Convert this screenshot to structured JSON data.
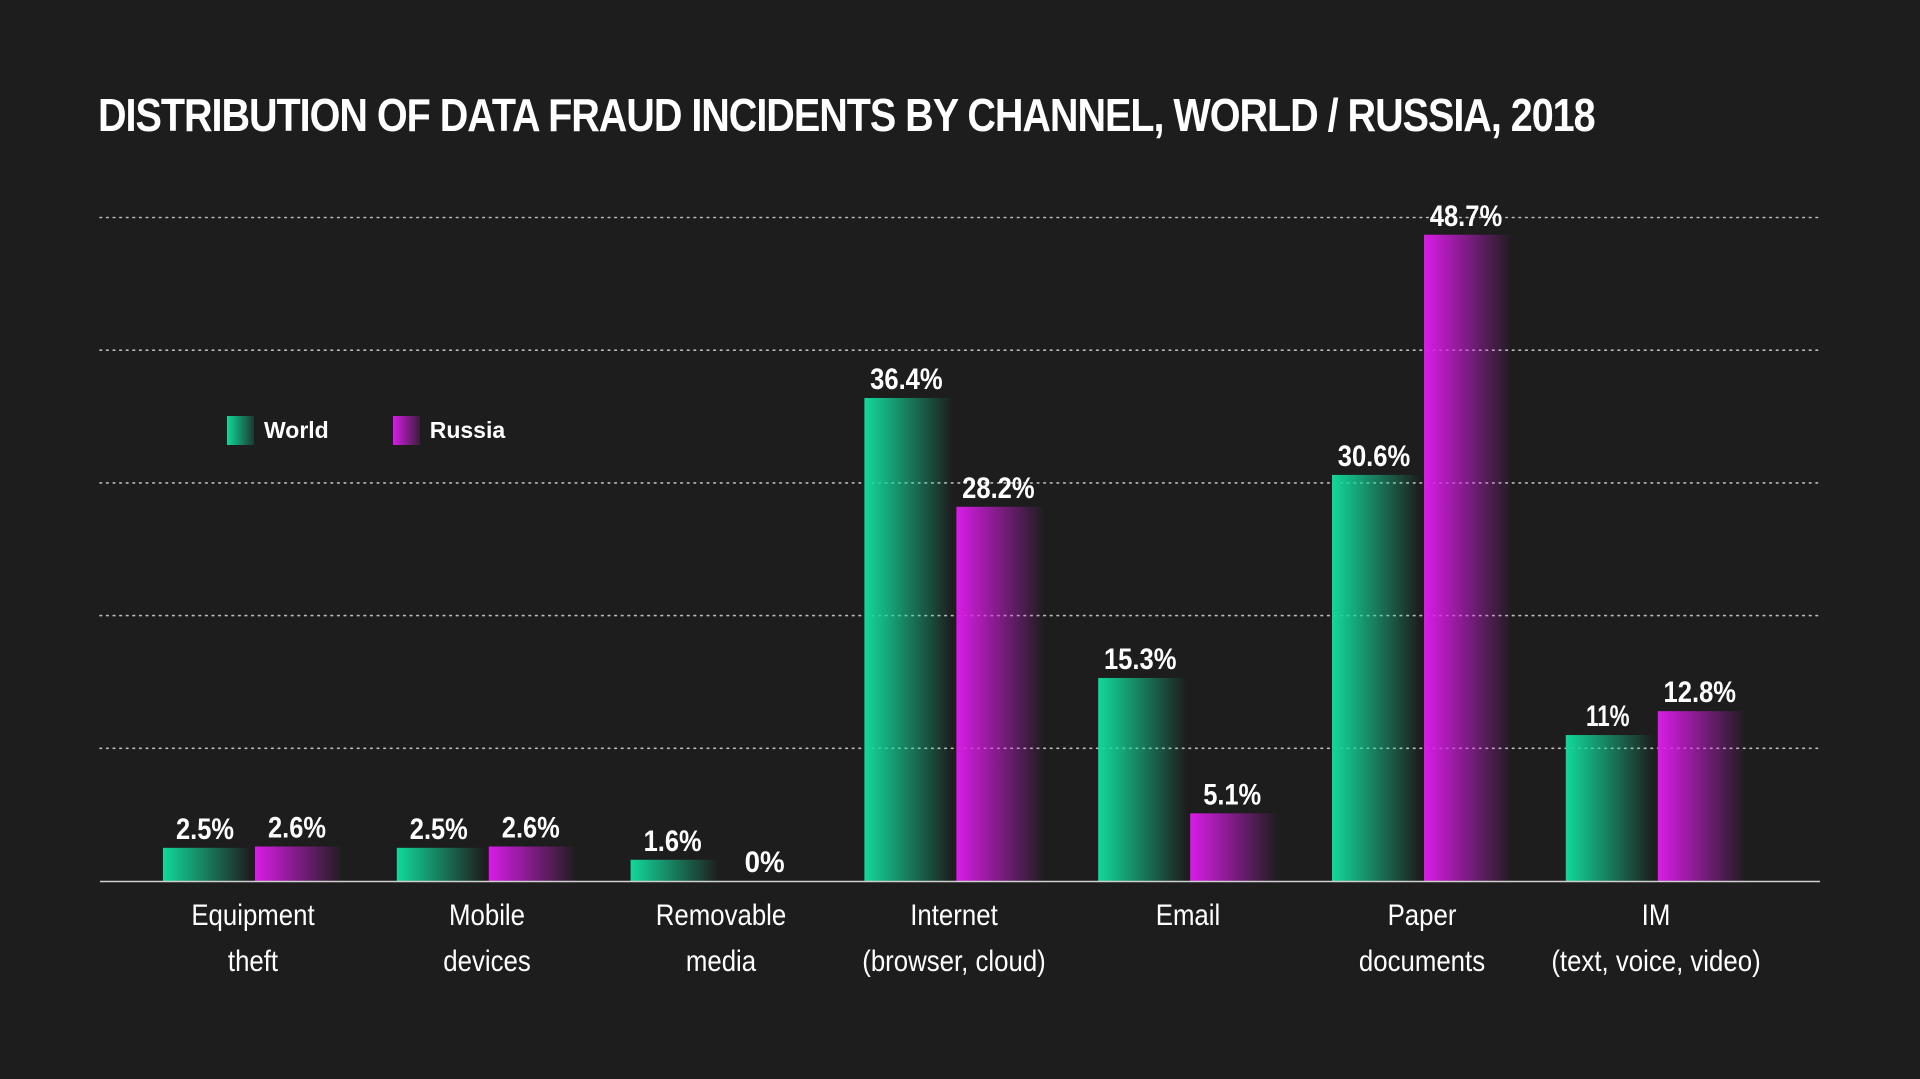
{
  "colors": {
    "background": "#1d1d1d",
    "world": "#12d89a",
    "russia": "#d91ce6",
    "grid": "#bbbbbb",
    "axis": "#cfcfcf",
    "text": "#ffffff"
  },
  "chart_data": {
    "type": "bar",
    "title": "DISTRIBUTION OF DATA FRAUD INCIDENTS BY CHANNEL, WORLD / RUSSIA, 2018",
    "xlabel": "",
    "ylabel": "",
    "ylim": [
      0,
      50
    ],
    "grid": true,
    "legend_position": "upper-left",
    "categories": [
      [
        "Equipment",
        "theft"
      ],
      [
        "Mobile",
        "devices"
      ],
      [
        "Removable",
        "media"
      ],
      [
        "Internet",
        "(browser, cloud)"
      ],
      [
        "Email"
      ],
      [
        "Paper",
        "documents"
      ],
      [
        "IM",
        "(text, voice, video)"
      ]
    ],
    "series": [
      {
        "name": "World",
        "color": "#12d89a",
        "values": [
          2.5,
          2.5,
          1.6,
          36.4,
          15.3,
          30.6,
          11
        ],
        "labels": [
          "2.5%",
          "2.5%",
          "1.6%",
          "36.4%",
          "15.3%",
          "30.6%",
          "11%"
        ]
      },
      {
        "name": "Russia",
        "color": "#d91ce6",
        "values": [
          2.6,
          2.6,
          0,
          28.2,
          5.1,
          48.7,
          12.8
        ],
        "labels": [
          "2.6%",
          "2.6%",
          "0%",
          "28.2%",
          "5.1%",
          "48.7%",
          "12.8%"
        ]
      }
    ]
  }
}
